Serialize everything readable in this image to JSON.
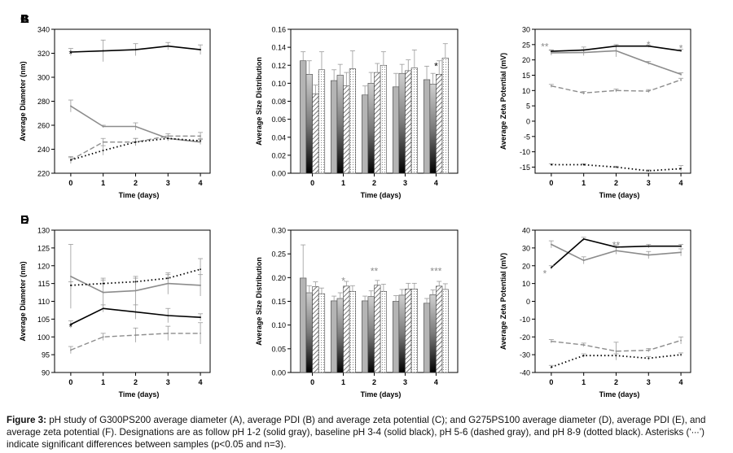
{
  "figure_id": "Figure 3:",
  "caption": "pH study of G300PS200 average diameter (A), average PDI (B) and average zeta potential (C); and G275PS100 average diameter (D), average PDI (E), and average zeta potential (F). Designations are as follow pH 1-2 (solid gray), baseline pH 3-4 (solid black), pH 5-6 (dashed gray), and pH 8-9 (dotted black). Asterisks (‘∙∙∙’) indicate significant differences between samples (p<0.05 and n=3).",
  "series_names": [
    "pH 1-2",
    "baseline pH 3-4",
    "pH 5-6",
    "pH 8-9"
  ],
  "colors": {
    "ph12": "#8c8c8c",
    "ph34": "#000000",
    "ph56": "#8c8c8c",
    "ph89": "#000000",
    "axis": "#000000"
  },
  "chart_data": [
    {
      "panel": "A",
      "type": "line",
      "title": "",
      "xlabel": "Time (days)",
      "ylabel": "Average Diameter (nm)",
      "x": [
        0,
        1,
        2,
        3,
        4
      ],
      "xlim": [
        -0.5,
        4.3
      ],
      "ylim": [
        220,
        340
      ],
      "yticks": [
        220,
        240,
        260,
        280,
        300,
        320,
        340
      ],
      "series": [
        {
          "name": "pH 1-2",
          "values": [
            276,
            259,
            259,
            249,
            246
          ],
          "err": [
            5,
            1,
            3,
            2,
            2
          ]
        },
        {
          "name": "baseline pH 3-4",
          "values": [
            321,
            322,
            323,
            326,
            323
          ],
          "err": [
            3,
            9,
            5,
            3,
            4
          ]
        },
        {
          "name": "pH 5-6",
          "values": [
            231,
            246,
            246,
            251,
            251
          ],
          "err": [
            3,
            3,
            3,
            2,
            3
          ]
        },
        {
          "name": "pH 8-9",
          "values": [
            231,
            239,
            246,
            249,
            247
          ],
          "err": [
            2,
            4,
            3,
            2,
            2
          ]
        }
      ],
      "annotations": [
        {
          "x": 0,
          "y": 320,
          "text": "*",
          "color": "#000000"
        }
      ]
    },
    {
      "panel": "B",
      "type": "bar",
      "title": "",
      "xlabel": "Time (days)",
      "ylabel": "Average Size Distribution",
      "categories": [
        "0",
        "1",
        "2",
        "3",
        "4"
      ],
      "ylim": [
        0,
        0.16
      ],
      "yticks": [
        "0.00",
        "0.02",
        "0.04",
        "0.06",
        "0.08",
        "0.10",
        "0.12",
        "0.14",
        "0.16"
      ],
      "series": [
        {
          "name": "pH 1-2",
          "values": [
            0.125,
            0.103,
            0.087,
            0.096,
            0.104
          ],
          "err": [
            0.01,
            0.012,
            0.01,
            0.015,
            0.015
          ]
        },
        {
          "name": "baseline pH 3-4",
          "values": [
            0.11,
            0.109,
            0.1,
            0.111,
            0.099
          ],
          "err": [
            0.015,
            0.012,
            0.012,
            0.01,
            0.012
          ]
        },
        {
          "name": "pH 5-6",
          "values": [
            0.088,
            0.097,
            0.112,
            0.114,
            0.11
          ],
          "err": [
            0.01,
            0.015,
            0.01,
            0.012,
            0.015
          ]
        },
        {
          "name": "pH 8-9",
          "values": [
            0.115,
            0.116,
            0.12,
            0.117,
            0.128
          ],
          "err": [
            0.02,
            0.02,
            0.015,
            0.02,
            0.016
          ]
        }
      ],
      "annotations": [
        {
          "x": 4,
          "y": 0.12,
          "text": "*",
          "color": "#000000"
        }
      ]
    },
    {
      "panel": "C",
      "type": "line",
      "title": "",
      "xlabel": "Time (days)",
      "ylabel": "Average Zeta Potential (mV)",
      "x": [
        0,
        1,
        2,
        3,
        4
      ],
      "xlim": [
        -0.5,
        4.3
      ],
      "ylim": [
        -17,
        30
      ],
      "yticks": [
        -15,
        -10,
        -5,
        0,
        5,
        10,
        15,
        20,
        25,
        30
      ],
      "series": [
        {
          "name": "pH 1-2",
          "values": [
            22.3,
            22.4,
            23.0,
            19.0,
            15.3
          ],
          "err": [
            0.8,
            1.0,
            2.0,
            0.5,
            0.5
          ]
        },
        {
          "name": "baseline pH 3-4",
          "values": [
            22.8,
            23.2,
            24.5,
            24.5,
            23.0
          ],
          "err": [
            0.5,
            1.0,
            0.5,
            0.4,
            0.4
          ]
        },
        {
          "name": "pH 5-6",
          "values": [
            11.5,
            9.2,
            10.0,
            9.8,
            13.5
          ],
          "err": [
            0.5,
            0.5,
            0.5,
            0.5,
            0.5
          ]
        },
        {
          "name": "pH 8-9",
          "values": [
            -14.2,
            -14.2,
            -15.0,
            -16.2,
            -15.5
          ],
          "err": [
            0.3,
            0.3,
            0.3,
            0.3,
            1.0
          ]
        }
      ],
      "annotations": [
        {
          "x": -0.2,
          "y": 24.5,
          "text": "**",
          "color": "#8c8c8c"
        },
        {
          "x": 3,
          "y": 25.2,
          "text": "*",
          "color": "#8c8c8c"
        },
        {
          "x": 4,
          "y": 24,
          "text": "*",
          "color": "#8c8c8c"
        }
      ]
    },
    {
      "panel": "D",
      "type": "line",
      "title": "",
      "xlabel": "Time (days)",
      "ylabel": "Average Diameter (nm)",
      "x": [
        0,
        1,
        2,
        3,
        4
      ],
      "xlim": [
        -0.5,
        4.3
      ],
      "ylim": [
        90,
        130
      ],
      "yticks": [
        90,
        95,
        100,
        105,
        110,
        115,
        120,
        125,
        130
      ],
      "series": [
        {
          "name": "pH 1-2",
          "values": [
            117,
            112.5,
            113,
            115,
            114.5
          ],
          "err": [
            9,
            4,
            4,
            3,
            3
          ]
        },
        {
          "name": "baseline pH 3-4",
          "values": [
            103.5,
            108,
            107,
            106,
            105.5
          ],
          "err": [
            1,
            1,
            2,
            2,
            1
          ]
        },
        {
          "name": "pH 5-6",
          "values": [
            96.3,
            100,
            100.5,
            101,
            101
          ],
          "err": [
            1,
            1,
            2,
            2,
            3
          ]
        },
        {
          "name": "pH 8-9",
          "values": [
            114.5,
            115,
            115.5,
            116.5,
            119
          ],
          "err": [
            1,
            1,
            1,
            1,
            3
          ]
        }
      ],
      "annotations": [
        {
          "x": 0,
          "y": 103,
          "text": "*",
          "color": "#000000"
        }
      ]
    },
    {
      "panel": "E",
      "type": "bar",
      "title": "",
      "xlabel": "Time (days)",
      "ylabel": "Average Size Distribution",
      "categories": [
        "0",
        "1",
        "2",
        "3",
        "4"
      ],
      "ylim": [
        0,
        0.3
      ],
      "yticks": [
        "0.00",
        "0.05",
        "0.10",
        "0.15",
        "0.20",
        "0.25",
        "0.30"
      ],
      "series": [
        {
          "name": "pH 1-2",
          "values": [
            0.199,
            0.151,
            0.151,
            0.15,
            0.146
          ],
          "err": [
            0.07,
            0.01,
            0.01,
            0.012,
            0.01
          ]
        },
        {
          "name": "baseline pH 3-4",
          "values": [
            0.168,
            0.156,
            0.16,
            0.163,
            0.164
          ],
          "err": [
            0.015,
            0.012,
            0.012,
            0.012,
            0.01
          ]
        },
        {
          "name": "pH 5-6",
          "values": [
            0.181,
            0.182,
            0.184,
            0.176,
            0.182
          ],
          "err": [
            0.01,
            0.01,
            0.01,
            0.012,
            0.01
          ]
        },
        {
          "name": "pH 8-9",
          "values": [
            0.166,
            0.171,
            0.171,
            0.176,
            0.175
          ],
          "err": [
            0.012,
            0.012,
            0.015,
            0.012,
            0.012
          ]
        }
      ],
      "annotations": [
        {
          "x": 1,
          "y": 0.195,
          "text": "*",
          "color": "#8c8c8c"
        },
        {
          "x": 2,
          "y": 0.215,
          "text": "**",
          "color": "#8c8c8c"
        },
        {
          "x": 4,
          "y": 0.215,
          "text": "***",
          "color": "#8c8c8c"
        }
      ]
    },
    {
      "panel": "F",
      "type": "line",
      "title": "",
      "xlabel": "Time (days)",
      "ylabel": "Average Zeta Potential (mV)",
      "x": [
        0,
        1,
        2,
        3,
        4
      ],
      "xlim": [
        -0.5,
        4.3
      ],
      "ylim": [
        -40,
        40
      ],
      "yticks": [
        -40,
        -30,
        -20,
        -10,
        0,
        10,
        20,
        30,
        40
      ],
      "series": [
        {
          "name": "pH 1-2",
          "values": [
            32,
            23,
            28.5,
            26,
            27.5
          ],
          "err": [
            2,
            2,
            2,
            2,
            2
          ]
        },
        {
          "name": "baseline pH 3-4",
          "values": [
            19,
            35,
            30.5,
            31,
            31
          ],
          "err": [
            1,
            1,
            1,
            1,
            1
          ]
        },
        {
          "name": "pH 5-6",
          "values": [
            -22.5,
            -24.5,
            -28,
            -27.5,
            -22
          ],
          "err": [
            1,
            1,
            5,
            1,
            2
          ]
        },
        {
          "name": "pH 8-9",
          "values": [
            -37,
            -30.5,
            -30.5,
            -32,
            -30
          ],
          "err": [
            1,
            1,
            1,
            1,
            1
          ]
        }
      ],
      "annotations": [
        {
          "x": -0.2,
          "y": 16,
          "text": "*",
          "color": "#8c8c8c"
        },
        {
          "x": 2,
          "y": 32,
          "text": "**",
          "color": "#8c8c8c"
        }
      ]
    }
  ]
}
